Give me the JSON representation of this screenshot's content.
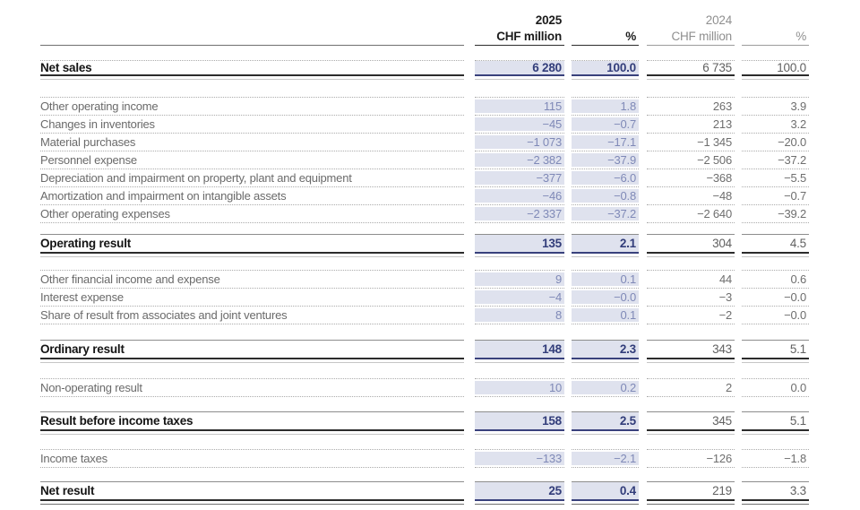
{
  "document": {
    "type": "income-statement-table",
    "colors": {
      "highlight_2025": "#dfe2ee",
      "accent_navy": "#323d7a",
      "secondary_gray": "#8f8f8f"
    }
  },
  "table": {
    "header": {
      "year_2025": "2025",
      "unit_2025": "CHF million",
      "pct_2025": "%",
      "year_2024": "2024",
      "unit_2024": "CHF million",
      "pct_2024": "%"
    },
    "rows": [
      {
        "label": "Net sales",
        "chf_2025": "6 280",
        "pct_2025": "100.0",
        "chf_2024": "6 735",
        "pct_2024": "100.0",
        "style": "section"
      },
      {
        "label": "Other operating income",
        "chf_2025": "115",
        "pct_2025": "1.8",
        "chf_2024": "263",
        "pct_2024": "3.9",
        "style": "regular"
      },
      {
        "label": "Changes in inventories",
        "chf_2025": "−45",
        "pct_2025": "−0.7",
        "chf_2024": "213",
        "pct_2024": "3.2",
        "style": "regular"
      },
      {
        "label": "Material purchases",
        "chf_2025": "−1 073",
        "pct_2025": "−17.1",
        "chf_2024": "−1 345",
        "pct_2024": "−20.0",
        "style": "regular"
      },
      {
        "label": "Personnel expense",
        "chf_2025": "−2 382",
        "pct_2025": "−37.9",
        "chf_2024": "−2 506",
        "pct_2024": "−37.2",
        "style": "regular"
      },
      {
        "label": "Depreciation and impairment on property, plant and equipment",
        "chf_2025": "−377",
        "pct_2025": "−6.0",
        "chf_2024": "−368",
        "pct_2024": "−5.5",
        "style": "regular"
      },
      {
        "label": "Amortization and impairment on intangible assets",
        "chf_2025": "−46",
        "pct_2025": "−0.8",
        "chf_2024": "−48",
        "pct_2024": "−0.7",
        "style": "regular"
      },
      {
        "label": "Other operating expenses",
        "chf_2025": "−2 337",
        "pct_2025": "−37.2",
        "chf_2024": "−2 640",
        "pct_2024": "−39.2",
        "style": "regular"
      },
      {
        "label": "Operating result",
        "chf_2025": "135",
        "pct_2025": "2.1",
        "chf_2024": "304",
        "pct_2024": "4.5",
        "style": "section"
      },
      {
        "label": "Other financial income and expense",
        "chf_2025": "9",
        "pct_2025": "0.1",
        "chf_2024": "44",
        "pct_2024": "0.6",
        "style": "regular"
      },
      {
        "label": "Interest expense",
        "chf_2025": "−4",
        "pct_2025": "−0.0",
        "chf_2024": "−3",
        "pct_2024": "−0.0",
        "style": "regular"
      },
      {
        "label": "Share of result from associates and joint ventures",
        "chf_2025": "8",
        "pct_2025": "0.1",
        "chf_2024": "−2",
        "pct_2024": "−0.0",
        "style": "regular"
      },
      {
        "label": "Ordinary result",
        "chf_2025": "148",
        "pct_2025": "2.3",
        "chf_2024": "343",
        "pct_2024": "5.1",
        "style": "section"
      },
      {
        "label": "Non-operating result",
        "chf_2025": "10",
        "pct_2025": "0.2",
        "chf_2024": "2",
        "pct_2024": "0.0",
        "style": "regular"
      },
      {
        "label": "Result before income taxes",
        "chf_2025": "158",
        "pct_2025": "2.5",
        "chf_2024": "345",
        "pct_2024": "5.1",
        "style": "section"
      },
      {
        "label": "Income taxes",
        "chf_2025": "−133",
        "pct_2025": "−2.1",
        "chf_2024": "−126",
        "pct_2024": "−1.8",
        "style": "regular"
      },
      {
        "label": "Net result",
        "chf_2025": "25",
        "pct_2025": "0.4",
        "chf_2024": "219",
        "pct_2024": "3.3",
        "style": "section-final"
      }
    ]
  }
}
